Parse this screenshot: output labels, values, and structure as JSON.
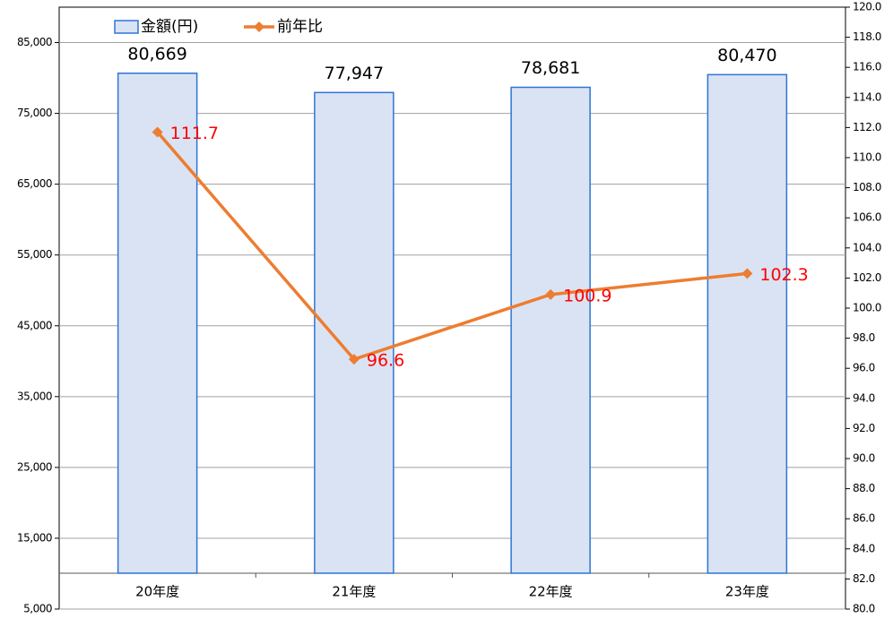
{
  "chart_data": {
    "type": "bar+line",
    "categories": [
      "20年度",
      "21年度",
      "22年度",
      "23年度"
    ],
    "series": [
      {
        "name": "金額(円)",
        "type": "bar",
        "color": "#dae3f3",
        "edge_color": "#2e75d6",
        "values": [
          80669,
          77947,
          78681,
          80470
        ],
        "value_labels": [
          "80,669",
          "77,947",
          "78,681",
          "80,470"
        ]
      },
      {
        "name": "前年比",
        "type": "line",
        "axis": "y2",
        "color": "#ed7d31",
        "label_color": "#ff0000",
        "values": [
          111.7,
          96.6,
          100.9,
          102.3
        ]
      }
    ],
    "ylim": [
      5000,
      90000
    ],
    "yticks": [
      {
        "value": 5000,
        "label": "5,000"
      },
      {
        "value": 15000,
        "label": "15,000"
      },
      {
        "value": 25000,
        "label": "25,000"
      },
      {
        "value": 35000,
        "label": "35,000"
      },
      {
        "value": 45000,
        "label": "45,000"
      },
      {
        "value": 55000,
        "label": "55,000"
      },
      {
        "value": 65000,
        "label": "65,000"
      },
      {
        "value": 75000,
        "label": "75,000"
      },
      {
        "value": 85000,
        "label": "85,000"
      }
    ],
    "y2lim": [
      80,
      120
    ],
    "y2ticks": [
      {
        "value": 80,
        "label": "80.0"
      },
      {
        "value": 82,
        "label": "82.0"
      },
      {
        "value": 84,
        "label": "84.0"
      },
      {
        "value": 86,
        "label": "86.0"
      },
      {
        "value": 88,
        "label": "88.0"
      },
      {
        "value": 90,
        "label": "90.0"
      },
      {
        "value": 92,
        "label": "92.0"
      },
      {
        "value": 94,
        "label": "94.0"
      },
      {
        "value": 96,
        "label": "96.0"
      },
      {
        "value": 98,
        "label": "98.0"
      },
      {
        "value": 100,
        "label": "100.0"
      },
      {
        "value": 102,
        "label": "102.0"
      },
      {
        "value": 104,
        "label": "104.0"
      },
      {
        "value": 106,
        "label": "106.0"
      },
      {
        "value": 108,
        "label": "108.0"
      },
      {
        "value": 110,
        "label": "110.0"
      },
      {
        "value": 112,
        "label": "112.0"
      },
      {
        "value": 114,
        "label": "114.0"
      },
      {
        "value": 116,
        "label": "116.0"
      },
      {
        "value": 118,
        "label": "118.0"
      },
      {
        "value": 120,
        "label": "120.0"
      }
    ],
    "grid": true,
    "legend": "top-left"
  }
}
